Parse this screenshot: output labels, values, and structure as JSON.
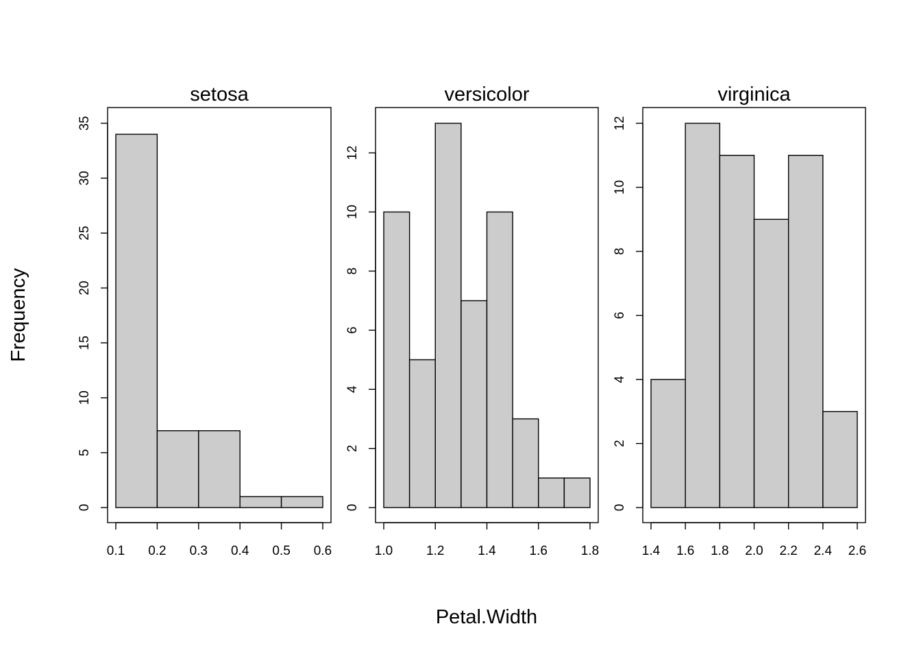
{
  "figure": {
    "xlabel": "Petal.Width",
    "ylabel": "Frequency",
    "colors": {
      "bar_fill": "#cccccc",
      "stroke": "#000000",
      "background": "#ffffff"
    }
  },
  "chart_data": [
    {
      "type": "bar",
      "title": "setosa",
      "xlabel": "Petal.Width",
      "ylabel": "Frequency",
      "bin_edges": [
        0.1,
        0.2,
        0.3,
        0.4,
        0.5,
        0.6
      ],
      "values": [
        34,
        7,
        7,
        1,
        1
      ],
      "xlim": [
        0.1,
        0.6
      ],
      "ylim": [
        0,
        35
      ],
      "x_ticks": [
        "0.1",
        "0.2",
        "0.3",
        "0.4",
        "0.5",
        "0.6"
      ],
      "y_ticks": [
        "0",
        "5",
        "10",
        "15",
        "20",
        "25",
        "30",
        "35"
      ],
      "grid": false
    },
    {
      "type": "bar",
      "title": "versicolor",
      "xlabel": "Petal.Width",
      "ylabel": "Frequency",
      "bin_edges": [
        1.0,
        1.1,
        1.2,
        1.3,
        1.4,
        1.5,
        1.6,
        1.7,
        1.8
      ],
      "values": [
        10,
        5,
        13,
        7,
        10,
        3,
        1,
        1
      ],
      "xlim": [
        1.0,
        1.8
      ],
      "ylim": [
        0,
        13
      ],
      "x_ticks": [
        "1.0",
        "1.2",
        "1.4",
        "1.6",
        "1.8"
      ],
      "y_ticks": [
        "0",
        "2",
        "4",
        "6",
        "8",
        "10",
        "12"
      ],
      "grid": false
    },
    {
      "type": "bar",
      "title": "virginica",
      "xlabel": "Petal.Width",
      "ylabel": "Frequency",
      "bin_edges": [
        1.4,
        1.6,
        1.8,
        2.0,
        2.2,
        2.4,
        2.6
      ],
      "values": [
        4,
        12,
        11,
        9,
        11,
        3
      ],
      "xlim": [
        1.4,
        2.6
      ],
      "ylim": [
        0,
        12
      ],
      "x_ticks": [
        "1.4",
        "1.6",
        "1.8",
        "2.0",
        "2.2",
        "2.4",
        "2.6"
      ],
      "y_ticks": [
        "0",
        "2",
        "4",
        "6",
        "8",
        "10",
        "12"
      ],
      "grid": false
    }
  ]
}
